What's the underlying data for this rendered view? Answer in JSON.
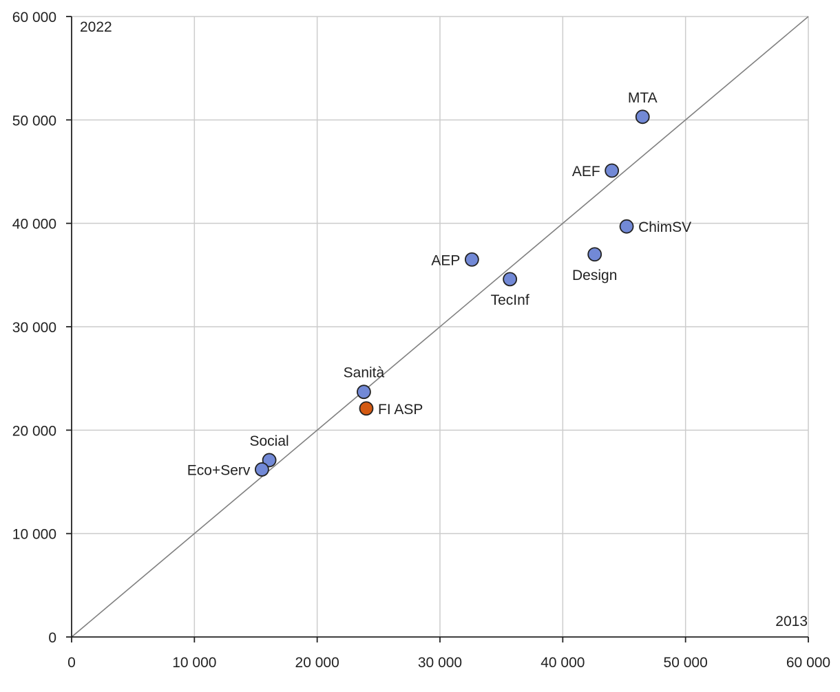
{
  "chart_data": {
    "type": "scatter",
    "xlabel": "2013",
    "ylabel": "2022",
    "xlim": [
      0,
      60000
    ],
    "ylim": [
      0,
      60000
    ],
    "grid": true,
    "reference_line": "y = x",
    "x_ticks": [
      0,
      10000,
      20000,
      30000,
      40000,
      50000,
      60000
    ],
    "x_tick_labels": [
      "0",
      "10 000",
      "20 000",
      "30 000",
      "40 000",
      "50 000",
      "60 000"
    ],
    "y_ticks": [
      0,
      10000,
      20000,
      30000,
      40000,
      50000,
      60000
    ],
    "y_tick_labels": [
      "0",
      "10 000",
      "20 000",
      "30 000",
      "40 000",
      "50 000",
      "60 000"
    ],
    "colors": {
      "default": "#7289d6",
      "highlight": "#d45a12"
    },
    "points": [
      {
        "label": "MTA",
        "x": 46500,
        "y": 50300,
        "highlight": false,
        "label_pos": "above"
      },
      {
        "label": "AEF",
        "x": 44000,
        "y": 45100,
        "highlight": false,
        "label_pos": "left"
      },
      {
        "label": "ChimSV",
        "x": 45200,
        "y": 39700,
        "highlight": false,
        "label_pos": "right"
      },
      {
        "label": "Design",
        "x": 42600,
        "y": 37000,
        "highlight": false,
        "label_pos": "below"
      },
      {
        "label": "AEP",
        "x": 32600,
        "y": 36500,
        "highlight": false,
        "label_pos": "left"
      },
      {
        "label": "TecInf",
        "x": 35700,
        "y": 34600,
        "highlight": false,
        "label_pos": "below"
      },
      {
        "label": "Sanità",
        "x": 23800,
        "y": 23700,
        "highlight": false,
        "label_pos": "above"
      },
      {
        "label": "FI ASP",
        "x": 24000,
        "y": 22100,
        "highlight": true,
        "label_pos": "right"
      },
      {
        "label": "Social",
        "x": 16100,
        "y": 17100,
        "highlight": false,
        "label_pos": "above"
      },
      {
        "label": "Eco+Serv",
        "x": 15500,
        "y": 16200,
        "highlight": false,
        "label_pos": "left"
      }
    ]
  }
}
